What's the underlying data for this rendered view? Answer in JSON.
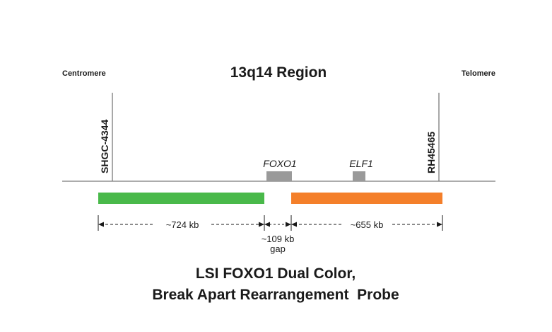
{
  "header": {
    "left_end": "Centromere",
    "right_end": "Telomere",
    "region_title": "13q14 Region"
  },
  "markers": {
    "left": "SHGC-4344",
    "right": "RH45465"
  },
  "genes": [
    {
      "label": "FOXO1"
    },
    {
      "label": "ELF1"
    }
  ],
  "probes": [
    {
      "color": "#49b94a",
      "size_label": "~724 kb"
    },
    {
      "color": "#f47f2a",
      "size_label": "~655 kb"
    }
  ],
  "gap": {
    "size_label": "~109 kb",
    "sub_label": "gap"
  },
  "caption": {
    "line1": "LSI FOXO1 Dual Color,",
    "line2": "Break Apart Rearrangement  Probe"
  },
  "colors": {
    "baseline": "#7a7a7a",
    "gene_box": "#9a9a9a"
  }
}
